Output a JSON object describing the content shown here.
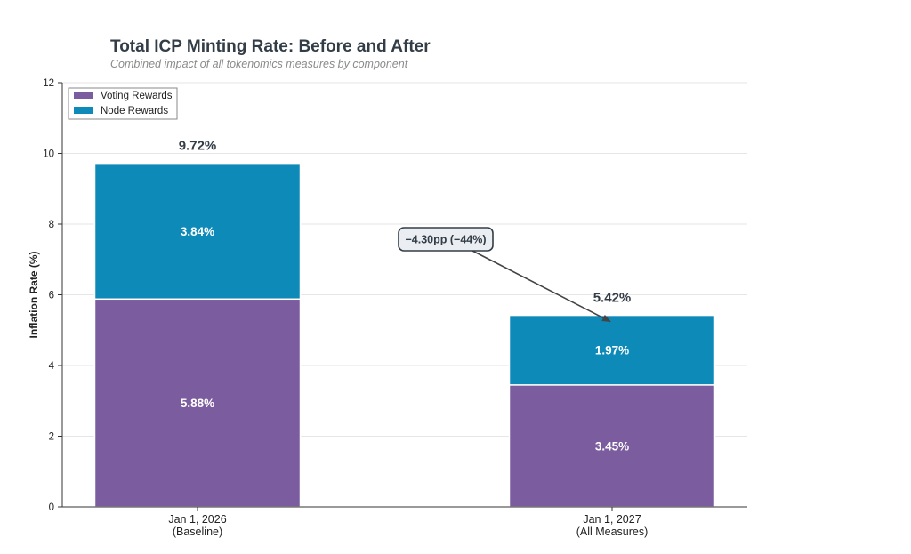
{
  "chart_data": {
    "type": "bar",
    "stacked": true,
    "title": "Total ICP Minting Rate: Before and After",
    "subtitle": "Combined impact of all tokenomics measures by component",
    "xlabel": "",
    "ylabel": "Inflation Rate (%)",
    "ylim": [
      0,
      12
    ],
    "yticks": [
      0,
      2,
      4,
      6,
      8,
      10,
      12
    ],
    "grid": true,
    "legend_position": "top-left",
    "categories": [
      {
        "line1": "Jan 1, 2026",
        "line2": "(Baseline)"
      },
      {
        "line1": "Jan 1, 2027",
        "line2": "(All Measures)"
      }
    ],
    "series": [
      {
        "name": "Voting Rewards",
        "color": "#7b5c9e",
        "values": [
          5.88,
          3.45
        ],
        "labels": [
          "5.88%",
          "3.45%"
        ]
      },
      {
        "name": "Node Rewards",
        "color": "#0e8ab8",
        "values": [
          3.84,
          1.97
        ],
        "labels": [
          "3.84%",
          "1.97%"
        ]
      }
    ],
    "totals": [
      9.72,
      5.42
    ],
    "total_labels": [
      "9.72%",
      "5.42%"
    ],
    "annotation": {
      "text": "−4.30pp (−44%)",
      "from_category": 0,
      "to_category": 1,
      "target_value": 5.42
    }
  }
}
